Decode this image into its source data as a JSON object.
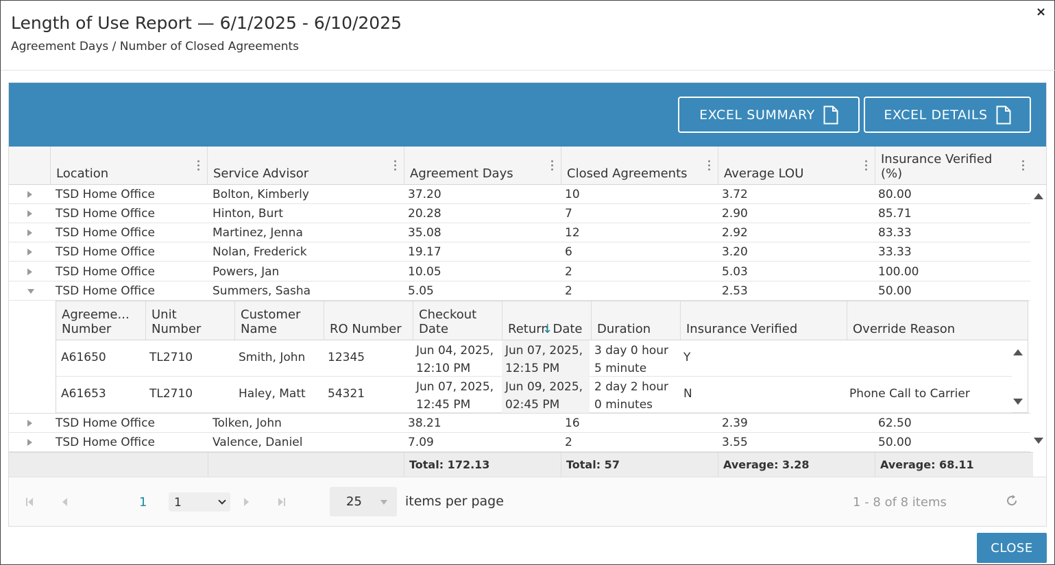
{
  "dialog": {
    "title": "Length of Use Report — 6/1/2025 - 6/10/2025",
    "subtitle": "Agreement Days / Number of Closed Agreements",
    "close_icon": "×",
    "close_button": "CLOSE"
  },
  "toolbar": {
    "excel_summary": "EXCEL SUMMARY",
    "excel_details": "EXCEL DETAILS",
    "icon": "document-icon"
  },
  "columns": [
    "Location",
    "Service Advisor",
    "Agreement Days",
    "Closed Agreements",
    "Average LOU",
    "Insurance Verified (%)"
  ],
  "rows": [
    {
      "location": "TSD Home Office",
      "advisor": "Bolton, Kimberly",
      "days": "37.20",
      "closed": "10",
      "avg": "3.72",
      "ins": "80.00"
    },
    {
      "location": "TSD Home Office",
      "advisor": "Hinton, Burt",
      "days": "20.28",
      "closed": "7",
      "avg": "2.90",
      "ins": "85.71"
    },
    {
      "location": "TSD Home Office",
      "advisor": "Martinez, Jenna",
      "days": "35.08",
      "closed": "12",
      "avg": "2.92",
      "ins": "83.33"
    },
    {
      "location": "TSD Home Office",
      "advisor": "Nolan, Frederick",
      "days": "19.17",
      "closed": "6",
      "avg": "3.20",
      "ins": "33.33"
    },
    {
      "location": "TSD Home Office",
      "advisor": "Powers, Jan",
      "days": "10.05",
      "closed": "2",
      "avg": "5.03",
      "ins": "100.00"
    },
    {
      "location": "TSD Home Office",
      "advisor": "Summers, Sasha",
      "days": "5.05",
      "closed": "2",
      "avg": "2.53",
      "ins": "50.00"
    },
    {
      "location": "TSD Home Office",
      "advisor": "Tolken, John",
      "days": "38.21",
      "closed": "16",
      "avg": "2.39",
      "ins": "62.50"
    },
    {
      "location": "TSD Home Office",
      "advisor": "Valence, Daniel",
      "days": "7.09",
      "closed": "2",
      "avg": "3.55",
      "ins": "50.00"
    }
  ],
  "detail": {
    "columns": [
      "Agreeme... Number",
      "Unit Number",
      "Customer Name",
      "RO Number",
      "Checkout Date",
      "Return Date",
      "Duration",
      "Insurance Verified",
      "Override Reason"
    ],
    "sort_icon": "↓",
    "rows": [
      {
        "agreement": "A61650",
        "unit": "TL2710",
        "customer": "Smith, John",
        "ro": "12345",
        "checkout": "Jun 04, 2025, 12:10 PM",
        "return": "Jun 07, 2025, 12:15 PM",
        "duration": "3 day 0 hour 5 minute",
        "insurance": "Y",
        "override": ""
      },
      {
        "agreement": "A61653",
        "unit": "TL2710",
        "customer": "Haley, Matt",
        "ro": "54321",
        "checkout": "Jun 07, 2025, 12:45 PM",
        "return": "Jun 09, 2025, 02:45 PM",
        "duration": "2 day 2 hour 0 minutes",
        "insurance": "N",
        "override": "Phone Call to Carrier"
      }
    ]
  },
  "totals": {
    "days": "Total: 172.13",
    "closed": "Total: 57",
    "avg": "Average: 3.28",
    "ins": "Average: 68.11"
  },
  "pager": {
    "current_page": "1",
    "page_select": "1",
    "per_page": "25",
    "per_page_label": "items per page",
    "item_count": "1 - 8 of 8 items"
  },
  "colors": {
    "accent": "#3a89ba",
    "link": "#1a8aa6"
  }
}
